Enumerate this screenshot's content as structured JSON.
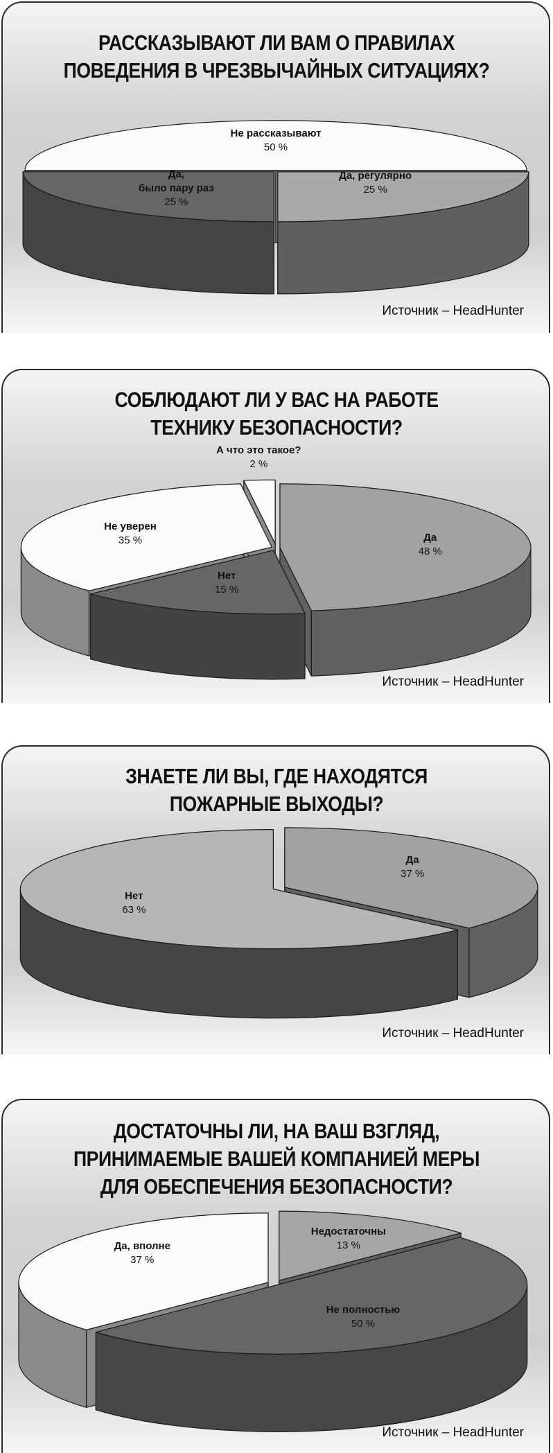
{
  "source_label": "Источник – HeadHunter",
  "chart_data": [
    {
      "type": "pie",
      "style": "3d-exploded",
      "title_lines": [
        "РАССКАЗЫВАЮТ ЛИ ВАМ О ПРАВИЛАХ",
        "ПОВЕДЕНИЯ В ЧРЕЗВЫЧАЙНЫХ СИТУАЦИЯХ?"
      ],
      "slices": [
        {
          "label": "Да, регулярно",
          "value": 25,
          "value_label": "25 %",
          "top_color": "#a9a9a9",
          "side_color": "#5f5f5f"
        },
        {
          "label": "Да,\nбыло пару раз",
          "value": 25,
          "value_label": "25 %",
          "top_color": "#666666",
          "side_color": "#444444"
        },
        {
          "label": "Не рассказывают",
          "value": 50,
          "value_label": "50 %",
          "top_color": "#fbfbfb",
          "side_color": "#8a8a8a"
        }
      ]
    },
    {
      "type": "pie",
      "style": "3d-exploded",
      "title_lines": [
        "СОБЛЮДАЮТ ЛИ У ВАС НА РАБОТЕ",
        "ТЕХНИКУ БЕЗОПАСНОСТИ?"
      ],
      "slices": [
        {
          "label": "Да",
          "value": 48,
          "value_label": "48 %",
          "top_color": "#a2a2a2",
          "side_color": "#616161"
        },
        {
          "label": "Нет",
          "value": 15,
          "value_label": "15 %",
          "top_color": "#666666",
          "side_color": "#434343"
        },
        {
          "label": "Не уверен",
          "value": 35,
          "value_label": "35 %",
          "top_color": "#fbfbfb",
          "side_color": "#8a8a8a"
        },
        {
          "label": "А что это такое?",
          "value": 2,
          "value_label": "2 %",
          "top_color": "#fbfbfb",
          "side_color": "#8a8a8a"
        }
      ]
    },
    {
      "type": "pie",
      "style": "3d-exploded",
      "title_lines": [
        "ЗНАЕТЕ ЛИ ВЫ, ГДЕ НАХОДЯТСЯ",
        "ПОЖАРНЫЕ ВЫХОДЫ?"
      ],
      "slices": [
        {
          "label": "Да",
          "value": 37,
          "value_label": "37 %",
          "top_color": "#a2a2a2",
          "side_color": "#606060"
        },
        {
          "label": "Нет",
          "value": 63,
          "value_label": "63 %",
          "top_color": "#b6b6b6",
          "side_color": "#454545"
        }
      ]
    },
    {
      "type": "pie",
      "style": "3d-exploded",
      "title_lines": [
        "ДОСТАТОЧНЫ ЛИ, НА ВАШ ВЗГЛЯД,",
        "ПРИНИМАЕМЫЕ ВАШЕЙ КОМПАНИЕЙ МЕРЫ",
        "ДЛЯ ОБЕСПЕЧЕНИЯ БЕЗОПАСНОСТИ?"
      ],
      "slices": [
        {
          "label": "Недостаточны",
          "value": 13,
          "value_label": "13 %",
          "top_color": "#a6a6a6",
          "side_color": "#5e5e5e"
        },
        {
          "label": "Не полностью",
          "value": 50,
          "value_label": "50 %",
          "top_color": "#666666",
          "side_color": "#474747"
        },
        {
          "label": "Да, вполне",
          "value": 37,
          "value_label": "37 %",
          "top_color": "#fbfbfb",
          "side_color": "#8a8a8a"
        }
      ]
    }
  ]
}
